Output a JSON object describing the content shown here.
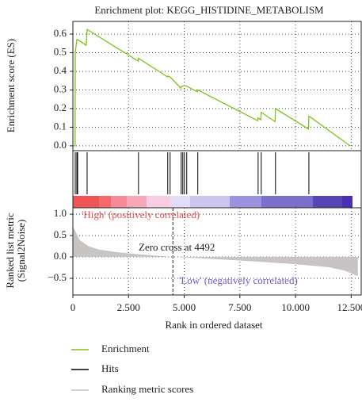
{
  "chart_data": [
    {
      "type": "line",
      "title": "Enrichment plot: KEGG_HISTIDINE_METABOLISM",
      "ylabel": "Enrichment score (ES)",
      "ylim": [
        -0.026,
        0.668
      ],
      "yticks": [
        {
          "value": 0,
          "label": "0.0"
        },
        0.1,
        0.2,
        0.3,
        0.4,
        0.5,
        0.6
      ],
      "grid": true,
      "x": [
        0,
        100,
        107,
        178,
        213,
        600,
        639,
        2930,
        2947,
        4250,
        4261,
        4368,
        4850,
        4865,
        4936,
        5007,
        5114,
        5590,
        5611,
        8300,
        8320,
        8440,
        8460,
        9080,
        9100,
        10580,
        10600,
        12450
      ],
      "series": [
        {
          "name": "Enrichment",
          "color": "#7cc21a",
          "values": [
            0,
            0,
            0.5,
            0.57,
            0.57,
            0.54,
            0.625,
            0.455,
            0.47,
            0.37,
            0.375,
            0.37,
            0.31,
            0.32,
            0.32,
            0.325,
            0.32,
            0.29,
            0.3,
            0.135,
            0.15,
            0.14,
            0.18,
            0.13,
            0.2,
            0.09,
            0.16,
            0
          ]
        }
      ]
    },
    {
      "type": "rug",
      "series": [
        {
          "name": "Hits",
          "color": "#000000",
          "x": [
            107,
            178,
            213,
            639,
            2947,
            4261,
            4368,
            4865,
            4936,
            5007,
            5114,
            5611,
            8320,
            8460,
            9100,
            10600
          ]
        }
      ]
    },
    {
      "type": "area",
      "xlabel": "Rank in ordered dataset",
      "ylabel": [
        "Ranked list metric",
        "(Signal2Noise)"
      ],
      "xlim": [
        0,
        12950
      ],
      "xticks": [
        0,
        {
          "value": 2500,
          "label": "2.500"
        },
        {
          "value": 5000,
          "label": "5.000"
        },
        {
          "value": 7500,
          "label": "7.500"
        },
        {
          "value": 10000,
          "label": "10.000"
        },
        {
          "value": 12500,
          "label": "12.500"
        }
      ],
      "ylim": [
        -0.89,
        1.15
      ],
      "yticks": [
        {
          "value": -0.5,
          "label": "−0.5"
        },
        {
          "value": 0,
          "label": "0.0"
        },
        0.5,
        {
          "value": 1,
          "label": "1.0"
        }
      ],
      "grid": true,
      "zero_cross": 4492,
      "annotations": {
        "high": "'High' (positively correlated)",
        "zero": "Zero cross at 4492",
        "low": "'Low' (negatively correlated)"
      },
      "x": [
        0,
        300,
        700,
        1200,
        2000,
        3000,
        4492,
        6000,
        8000,
        10000,
        11500,
        12200,
        12800
      ],
      "series": [
        {
          "name": "Ranking metric scores",
          "color": "#c9c4c4",
          "values": [
            0.72,
            0.4,
            0.25,
            0.17,
            0.11,
            0.06,
            0,
            -0.04,
            -0.1,
            -0.17,
            -0.24,
            -0.32,
            -0.45
          ]
        }
      ]
    }
  ]
}
